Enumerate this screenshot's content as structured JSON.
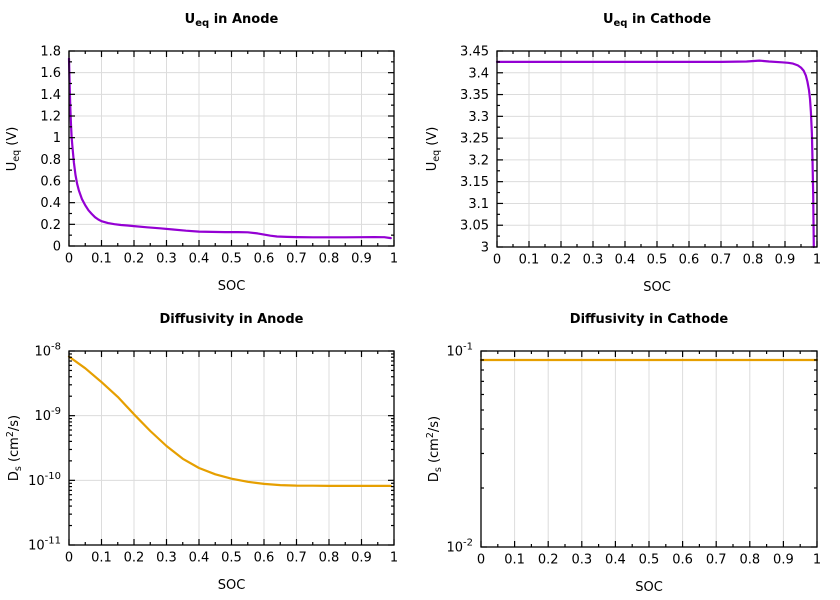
{
  "colors": {
    "purple_line": "#9400d3",
    "orange_line": "#e69f00",
    "grid": "#dcdcdc",
    "axis": "#000000",
    "background": "#ffffff",
    "text": "#000000"
  },
  "chart_data": [
    {
      "id": "ueq-anode",
      "type": "line",
      "title": "U_eq in Anode",
      "title_segments": [
        [
          "U",
          ""
        ],
        [
          "eq",
          "sub"
        ],
        [
          " in Anode",
          ""
        ]
      ],
      "xlabel": "SOC",
      "ylabel": "U_eq (V)",
      "ylabel_segments": [
        [
          "U",
          ""
        ],
        [
          "eq",
          "sub"
        ],
        [
          " (V)",
          ""
        ]
      ],
      "x_scale": "linear",
      "y_scale": "linear",
      "xlim": [
        0,
        1
      ],
      "ylim": [
        0,
        1.8
      ],
      "x_ticks": [
        0,
        0.1,
        0.2,
        0.3,
        0.4,
        0.5,
        0.6,
        0.7,
        0.8,
        0.9,
        1
      ],
      "x_tick_labels": [
        "0",
        "0.1",
        "0.2",
        "0.3",
        "0.4",
        "0.5",
        "0.6",
        "0.7",
        "0.8",
        "0.9",
        "1"
      ],
      "y_ticks": [
        0,
        0.2,
        0.4,
        0.6,
        0.8,
        1,
        1.2,
        1.4,
        1.6,
        1.8
      ],
      "y_tick_labels": [
        "0",
        "0.2",
        "0.4",
        "0.6",
        "0.8",
        "1",
        "1.2",
        "1.4",
        "1.6",
        "1.8"
      ],
      "grid": true,
      "legend": "none",
      "line_color": "#9400d3",
      "points": [
        [
          0,
          1.73
        ],
        [
          0.002,
          1.47
        ],
        [
          0.004,
          1.28
        ],
        [
          0.006,
          1.12
        ],
        [
          0.008,
          1.01
        ],
        [
          0.01,
          0.93
        ],
        [
          0.015,
          0.77
        ],
        [
          0.02,
          0.655
        ],
        [
          0.025,
          0.575
        ],
        [
          0.03,
          0.515
        ],
        [
          0.04,
          0.432
        ],
        [
          0.05,
          0.375
        ],
        [
          0.06,
          0.33
        ],
        [
          0.07,
          0.295
        ],
        [
          0.08,
          0.266
        ],
        [
          0.09,
          0.245
        ],
        [
          0.1,
          0.229
        ],
        [
          0.12,
          0.211
        ],
        [
          0.14,
          0.201
        ],
        [
          0.16,
          0.194
        ],
        [
          0.18,
          0.189
        ],
        [
          0.2,
          0.184
        ],
        [
          0.24,
          0.173
        ],
        [
          0.28,
          0.163
        ],
        [
          0.32,
          0.152
        ],
        [
          0.36,
          0.141
        ],
        [
          0.4,
          0.133
        ],
        [
          0.44,
          0.13
        ],
        [
          0.48,
          0.128
        ],
        [
          0.52,
          0.128
        ],
        [
          0.55,
          0.126
        ],
        [
          0.58,
          0.116
        ],
        [
          0.6,
          0.105
        ],
        [
          0.62,
          0.095
        ],
        [
          0.64,
          0.088
        ],
        [
          0.67,
          0.084
        ],
        [
          0.7,
          0.082
        ],
        [
          0.75,
          0.08
        ],
        [
          0.8,
          0.08
        ],
        [
          0.85,
          0.08
        ],
        [
          0.9,
          0.081
        ],
        [
          0.94,
          0.082
        ],
        [
          0.97,
          0.081
        ],
        [
          0.99,
          0.073
        ]
      ]
    },
    {
      "id": "ueq-cathode",
      "type": "line",
      "title": "U_eq in Cathode",
      "title_segments": [
        [
          "U",
          ""
        ],
        [
          "eq",
          "sub"
        ],
        [
          " in Cathode",
          ""
        ]
      ],
      "xlabel": "SOC",
      "ylabel": "U_eq (V)",
      "ylabel_segments": [
        [
          "U",
          ""
        ],
        [
          "eq",
          "sub"
        ],
        [
          " (V)",
          ""
        ]
      ],
      "x_scale": "linear",
      "y_scale": "linear",
      "xlim": [
        0,
        1
      ],
      "ylim": [
        3,
        3.45
      ],
      "x_ticks": [
        0,
        0.1,
        0.2,
        0.3,
        0.4,
        0.5,
        0.6,
        0.7,
        0.8,
        0.9,
        1
      ],
      "x_tick_labels": [
        "0",
        "0.1",
        "0.2",
        "0.3",
        "0.4",
        "0.5",
        "0.6",
        "0.7",
        "0.8",
        "0.9",
        "1"
      ],
      "y_ticks": [
        3,
        3.05,
        3.1,
        3.15,
        3.2,
        3.25,
        3.3,
        3.35,
        3.4,
        3.45
      ],
      "y_tick_labels": [
        "3",
        "3.05",
        "3.1",
        "3.15",
        "3.2",
        "3.25",
        "3.3",
        "3.35",
        "3.4",
        "3.45"
      ],
      "grid": true,
      "legend": "none",
      "line_color": "#9400d3",
      "points": [
        [
          0,
          3.425
        ],
        [
          0.1,
          3.425
        ],
        [
          0.2,
          3.425
        ],
        [
          0.3,
          3.425
        ],
        [
          0.4,
          3.425
        ],
        [
          0.5,
          3.425
        ],
        [
          0.6,
          3.425
        ],
        [
          0.7,
          3.425
        ],
        [
          0.78,
          3.426
        ],
        [
          0.82,
          3.428
        ],
        [
          0.85,
          3.426
        ],
        [
          0.89,
          3.424
        ],
        [
          0.91,
          3.423
        ],
        [
          0.925,
          3.421
        ],
        [
          0.94,
          3.417
        ],
        [
          0.95,
          3.412
        ],
        [
          0.958,
          3.405
        ],
        [
          0.965,
          3.394
        ],
        [
          0.97,
          3.38
        ],
        [
          0.975,
          3.36
        ],
        [
          0.978,
          3.34
        ],
        [
          0.981,
          3.31
        ],
        [
          0.984,
          3.26
        ],
        [
          0.986,
          3.2
        ],
        [
          0.988,
          3.12
        ],
        [
          0.989,
          3.06
        ],
        [
          0.99,
          3.0
        ]
      ]
    },
    {
      "id": "diffusivity-anode",
      "type": "line",
      "title": "Diffusivity in Anode",
      "title_segments": [
        [
          "Diffusivity in Anode",
          ""
        ]
      ],
      "xlabel": "SOC",
      "ylabel": "D_s (cm^2/s)",
      "ylabel_segments": [
        [
          "D",
          ""
        ],
        [
          "s",
          "sub"
        ],
        [
          " (cm",
          ""
        ],
        [
          "2",
          "sup"
        ],
        [
          "/s)",
          ""
        ]
      ],
      "x_scale": "linear",
      "y_scale": "log",
      "xlim": [
        0,
        1
      ],
      "ylim": [
        1e-11,
        1e-08
      ],
      "x_ticks": [
        0,
        0.1,
        0.2,
        0.3,
        0.4,
        0.5,
        0.6,
        0.7,
        0.8,
        0.9,
        1
      ],
      "x_tick_labels": [
        "0",
        "0.1",
        "0.2",
        "0.3",
        "0.4",
        "0.5",
        "0.6",
        "0.7",
        "0.8",
        "0.9",
        "1"
      ],
      "y_ticks": [
        1e-08,
        1e-09,
        1e-10,
        1e-11
      ],
      "y_tick_labels": [
        "10^-8",
        "10^-9",
        "10^-10",
        "10^-11"
      ],
      "grid": true,
      "legend": "none",
      "line_color": "#e69f00",
      "points": [
        [
          0,
          8.2e-09
        ],
        [
          0.05,
          5.4e-09
        ],
        [
          0.1,
          3.3e-09
        ],
        [
          0.15,
          1.95e-09
        ],
        [
          0.2,
          1.05e-09
        ],
        [
          0.25,
          5.8e-10
        ],
        [
          0.3,
          3.4e-10
        ],
        [
          0.35,
          2.15e-10
        ],
        [
          0.4,
          1.55e-10
        ],
        [
          0.45,
          1.24e-10
        ],
        [
          0.5,
          1.06e-10
        ],
        [
          0.55,
          9.5e-11
        ],
        [
          0.6,
          8.8e-11
        ],
        [
          0.65,
          8.45e-11
        ],
        [
          0.7,
          8.3e-11
        ],
        [
          0.75,
          8.25e-11
        ],
        [
          0.8,
          8.2e-11
        ],
        [
          0.85,
          8.2e-11
        ],
        [
          0.9,
          8.2e-11
        ],
        [
          0.95,
          8.2e-11
        ],
        [
          0.99,
          8.2e-11
        ]
      ]
    },
    {
      "id": "diffusivity-cathode",
      "type": "line",
      "title": "Diffusivity in Cathode",
      "title_segments": [
        [
          "Diffusivity in Cathode",
          ""
        ]
      ],
      "xlabel": "SOC",
      "ylabel": "D_s (cm^2/s)",
      "ylabel_segments": [
        [
          "D",
          ""
        ],
        [
          "s",
          "sub"
        ],
        [
          " (cm",
          ""
        ],
        [
          "2",
          "sup"
        ],
        [
          "/s)",
          ""
        ]
      ],
      "x_scale": "linear",
      "y_scale": "log",
      "xlim": [
        0,
        1
      ],
      "ylim": [
        0.01,
        0.1
      ],
      "x_ticks": [
        0,
        0.1,
        0.2,
        0.3,
        0.4,
        0.5,
        0.6,
        0.7,
        0.8,
        0.9,
        1
      ],
      "x_tick_labels": [
        "0",
        "0.1",
        "0.2",
        "0.3",
        "0.4",
        "0.5",
        "0.6",
        "0.7",
        "0.8",
        "0.9",
        "1"
      ],
      "y_ticks": [
        0.1,
        0.01
      ],
      "y_tick_labels": [
        "10^-1",
        "10^-2"
      ],
      "grid": true,
      "legend": "none",
      "line_color": "#e69f00",
      "points": [
        [
          0,
          0.09
        ],
        [
          0.5,
          0.09
        ],
        [
          1,
          0.09
        ]
      ]
    }
  ]
}
